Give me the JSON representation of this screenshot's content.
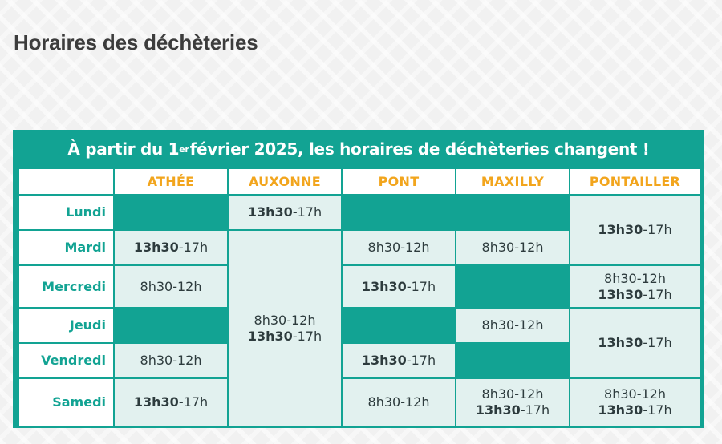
{
  "page": {
    "title": "Horaires des déchèteries"
  },
  "banner": {
    "before": "À partir du 1",
    "superscript": "er",
    "after": " février 2025, les horaires de déchèteries changent !"
  },
  "colors": {
    "teal": "#12a393",
    "light_cell": "#e2f1ef",
    "header_orange": "#f2a51d",
    "title_gray": "#3c3c3c"
  },
  "sites": [
    "ATHÉE",
    "AUXONNE",
    "PONT",
    "MAXILLY",
    "PONTAILLER"
  ],
  "days": [
    "Lundi",
    "Mardi",
    "Mercredi",
    "Jeudi",
    "Vendredi",
    "Samedi"
  ],
  "hours": {
    "afternoon_bold": "13h30",
    "afternoon_end": "-17h",
    "morning": "8h30-12h"
  },
  "schedule": {
    "athee": {
      "lundi": "fermé",
      "mardi": "13h30-17h",
      "mercredi": "8h30-12h",
      "jeudi": "fermé",
      "vendredi": "8h30-12h",
      "samedi": "13h30-17h"
    },
    "auxonne": {
      "lundi": "13h30-17h",
      "mardi_a_samedi": "8h30-12h / 13h30-17h"
    },
    "pont": {
      "lundi": "fermé",
      "mardi": "8h30-12h",
      "mercredi": "13h30-17h",
      "jeudi": "fermé",
      "vendredi": "13h30-17h",
      "samedi": "8h30-12h"
    },
    "maxilly": {
      "lundi": "fermé",
      "mardi": "8h30-12h",
      "mercredi": "fermé",
      "jeudi": "8h30-12h",
      "vendredi": "fermé",
      "samedi": "8h30-12h / 13h30-17h"
    },
    "pontailler": {
      "lundi_mardi": "13h30-17h",
      "mercredi": "8h30-12h / 13h30-17h",
      "jeudi_vendredi": "13h30-17h",
      "samedi": "8h30-12h / 13h30-17h"
    }
  }
}
